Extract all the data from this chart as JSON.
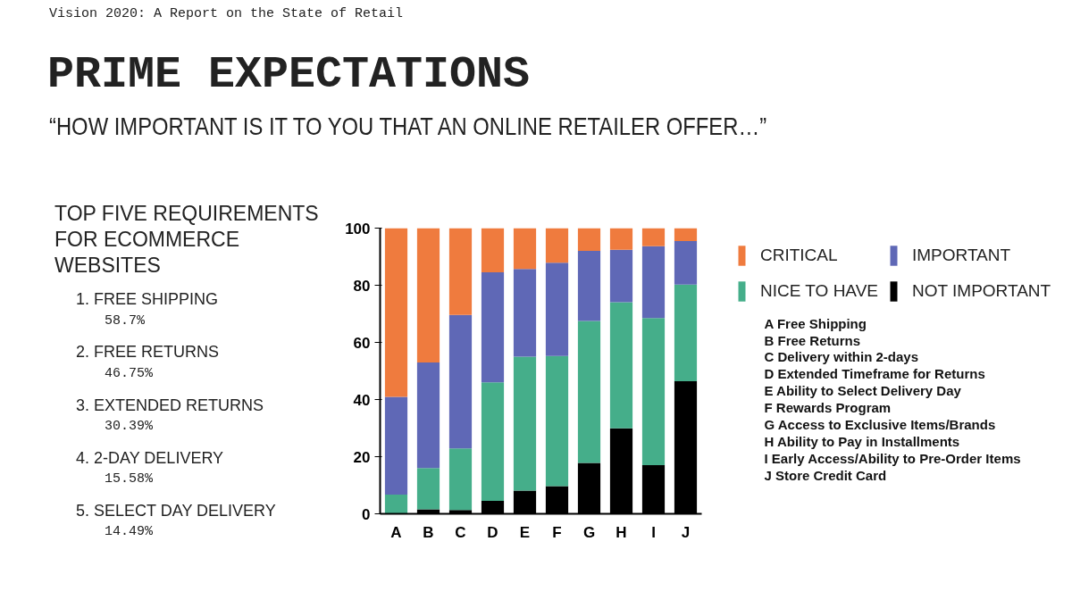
{
  "chart_data": {
    "type": "bar",
    "stacked": true,
    "title": "PRIME EXPECTATIONS",
    "subtitle": "“HOW IMPORTANT IS IT TO YOU THAT AN ONLINE RETAILER OFFER…”",
    "categories": [
      "A",
      "B",
      "C",
      "D",
      "E",
      "F",
      "G",
      "H",
      "I",
      "J"
    ],
    "series": [
      {
        "name": "NOT IMPORTANT",
        "color": "#000000",
        "values": [
          0,
          1.6,
          1.3,
          4.5,
          8.1,
          9.7,
          17.8,
          29.9,
          17,
          46.4
        ]
      },
      {
        "name": "NICE TO HAVE",
        "color": "#45ae8a",
        "values": [
          6.7,
          14.4,
          21.6,
          41.5,
          46.9,
          45.5,
          49.7,
          44.2,
          51.5,
          33.8
        ]
      },
      {
        "name": "IMPORTANT",
        "color": "#5f68b6",
        "values": [
          34.2,
          37,
          46.7,
          38.5,
          30.7,
          32.7,
          24.5,
          18.3,
          25.2,
          15.3
        ]
      },
      {
        "name": "CRITICAL",
        "color": "#ef7b3e",
        "values": [
          59.1,
          47,
          30.4,
          15.5,
          14.3,
          12.1,
          8,
          7.6,
          6.3,
          4.5
        ]
      }
    ],
    "ylim": [
      0,
      100
    ],
    "yticks": [
      0,
      20,
      40,
      60,
      80,
      100
    ],
    "legend": "top right",
    "annotations": [
      "Vision 2020: A Report on the State of Retail",
      "TOP FIVE REQUIREMENTS FOR ECOMMERCE WEBSITES",
      "1. FREE SHIPPING",
      "58.7%",
      "2. FREE RETURNS",
      "46.75%",
      "3. EXTENDED RETURNS",
      "30.39%",
      "4. 2-DAY DELIVERY",
      "15.58%",
      "5. SELECT DAY DELIVERY",
      "14.49%",
      "A Free Shipping",
      "B Free Returns",
      "C Delivery within 2-days",
      "D Extended Timeframe for Returns",
      "E Ability to Select Delivery Day",
      "F Rewards Program",
      "G Access to Exclusive Items/Brands",
      "H Ability to Pay in Installments",
      "I Early Access/Ability to Pre-Order Items",
      "J Store Credit Card"
    ]
  }
}
